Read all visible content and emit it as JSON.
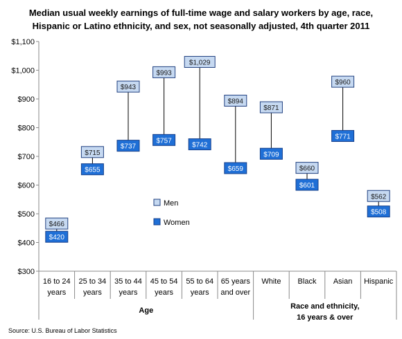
{
  "chart_data": {
    "type": "range",
    "title_lines": [
      "Median usual weekly earnings of full-time wage and salary workers by age, race,",
      "Hispanic or Latino ethnicity, and sex, not seasonally adjusted, 4th quarter 2011"
    ],
    "y_ticks": [
      "$300",
      "$400",
      "$500",
      "$600",
      "$700",
      "$800",
      "$900",
      "$1,000",
      "$1,100"
    ],
    "ylim": [
      300,
      1100
    ],
    "categories": [
      [
        "16 to 24",
        "years"
      ],
      [
        "25 to 34",
        "years"
      ],
      [
        "35 to 44",
        "years"
      ],
      [
        "45 to 54",
        "years"
      ],
      [
        "55 to 64",
        "years"
      ],
      [
        "65 years",
        "and over"
      ],
      [
        "White"
      ],
      [
        "Black"
      ],
      [
        "Asian"
      ],
      [
        "Hispanic"
      ]
    ],
    "groups": [
      {
        "label_lines": [
          "Age"
        ]
      },
      {
        "label_lines": [
          "Race and ethnicity,",
          "16 years & over"
        ]
      }
    ],
    "series": [
      {
        "name": "Men",
        "values": [
          466,
          715,
          943,
          993,
          1029,
          894,
          871,
          660,
          960,
          562
        ],
        "labels": [
          "$466",
          "$715",
          "$943",
          "$993",
          "$1,029",
          "$894",
          "$871",
          "$660",
          "$960",
          "$562"
        ]
      },
      {
        "name": "Women",
        "values": [
          420,
          655,
          737,
          757,
          742,
          659,
          709,
          601,
          771,
          508
        ],
        "labels": [
          "$420",
          "$655",
          "$737",
          "$757",
          "$742",
          "$659",
          "$709",
          "$601",
          "$771",
          "$508"
        ]
      }
    ],
    "legend_position": "center-left",
    "grid": false,
    "colors": {
      "men": "#c6d9f1",
      "men_border": "#1f3f7f",
      "women": "#1f6fd6",
      "women_border": "#163f8a"
    }
  },
  "source": "Source: U.S. Bureau of Labor Statistics"
}
